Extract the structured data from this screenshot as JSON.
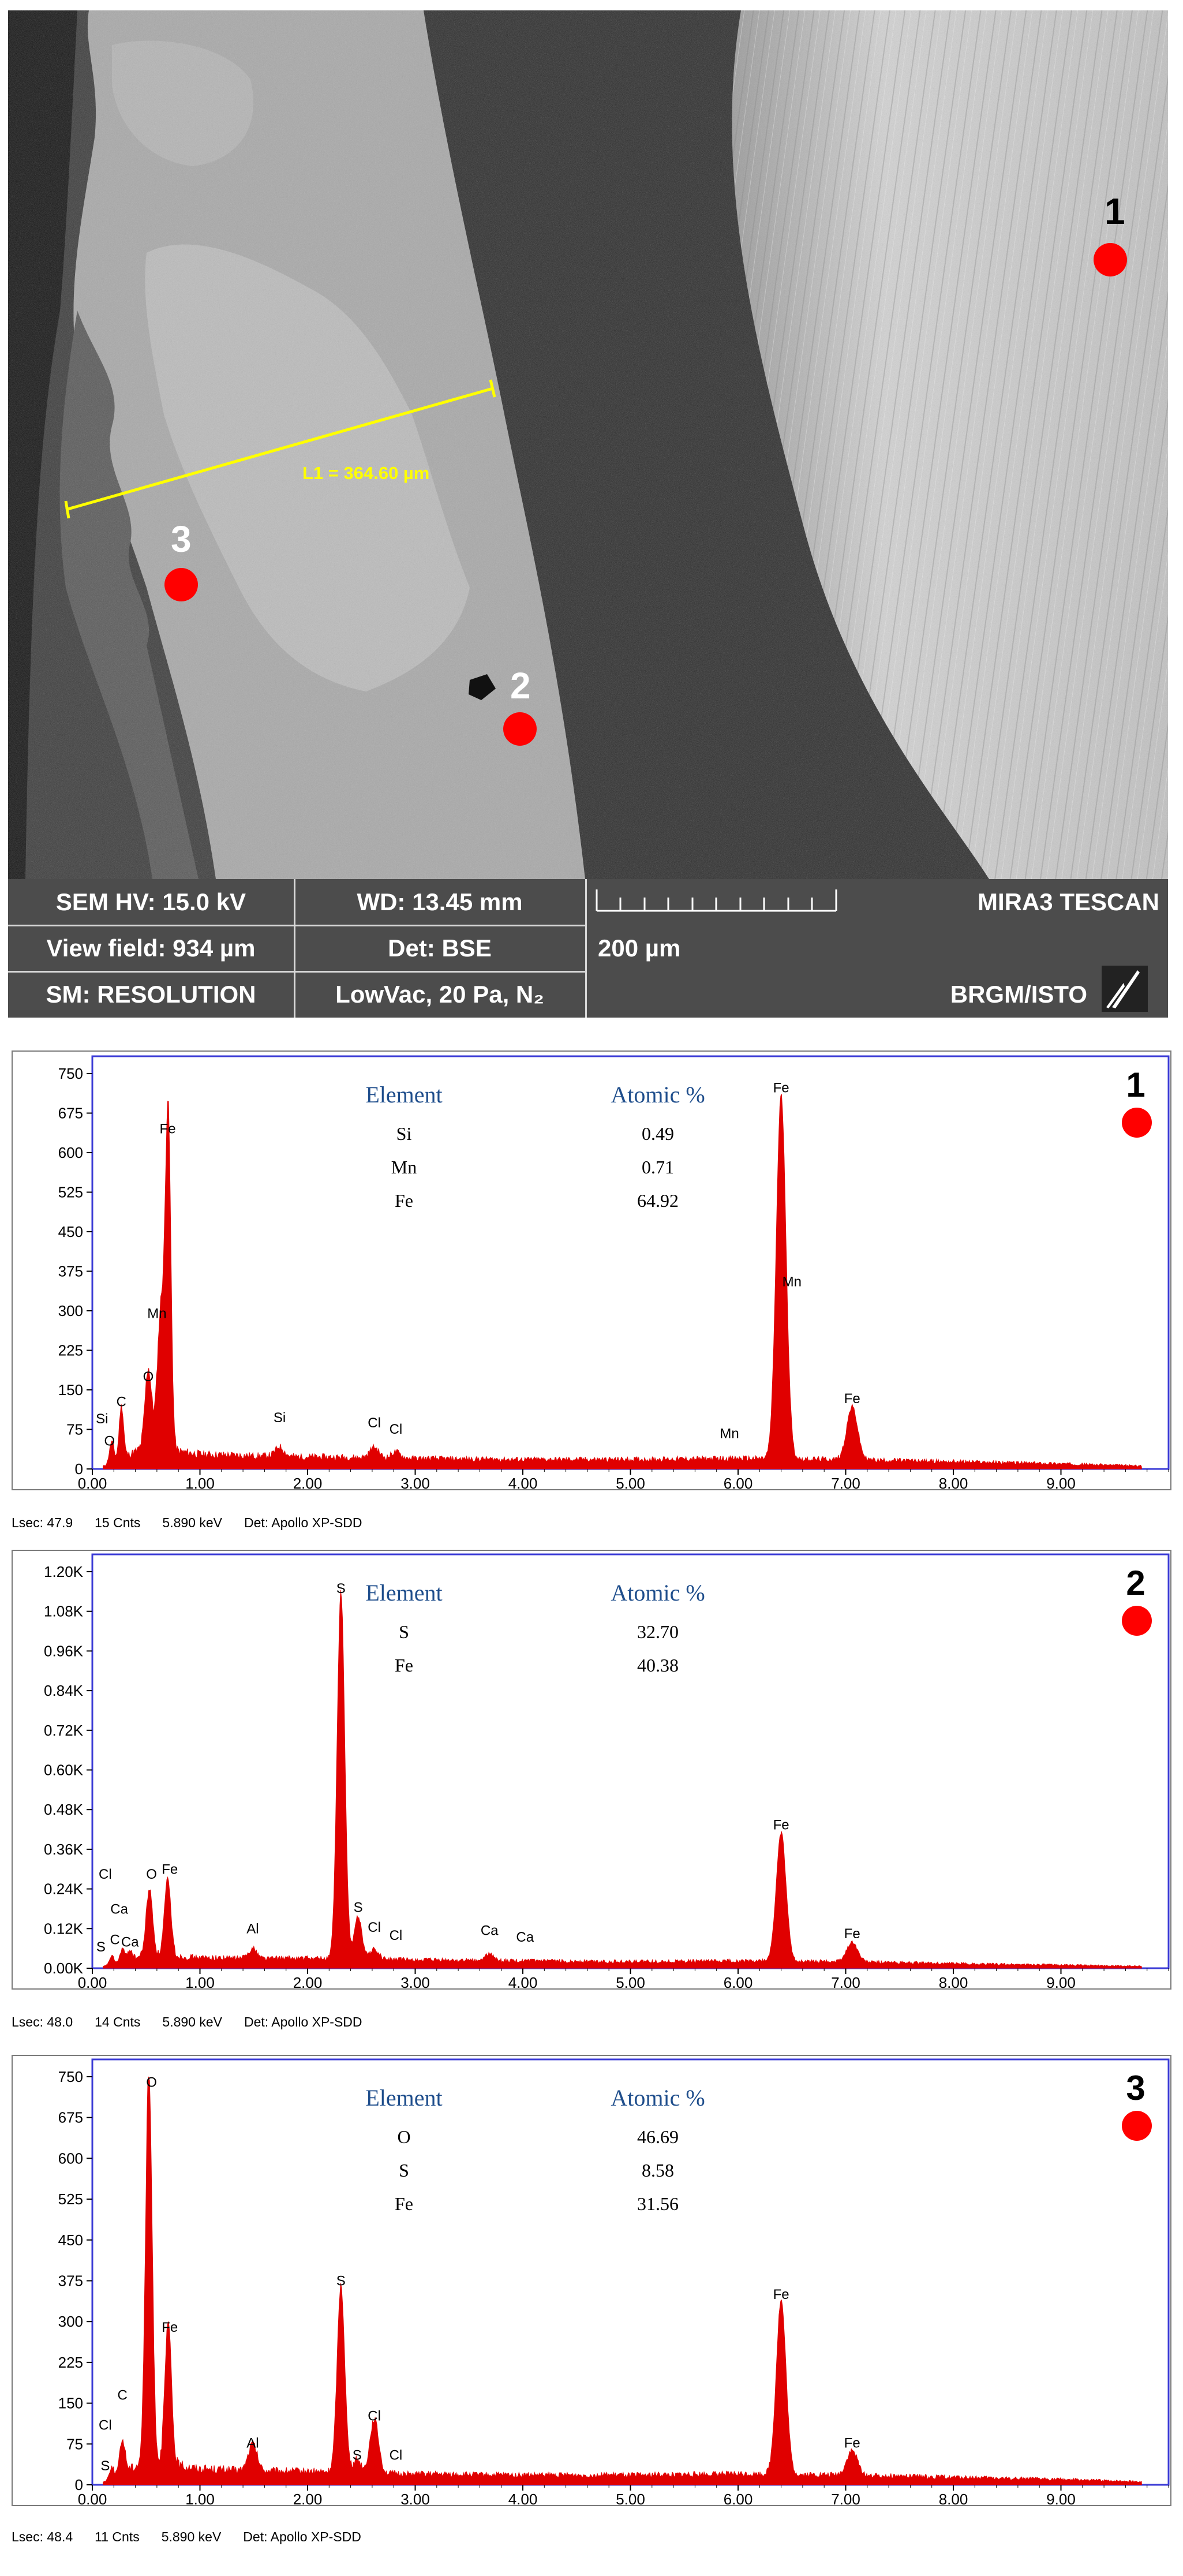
{
  "sem": {
    "footer": {
      "hv": "SEM HV: 15.0 kV",
      "wd": "WD: 13.45 mm",
      "brand": "MIRA3 TESCAN",
      "view_field": "View field: 934 µm",
      "det": "Det: BSE",
      "scale_label": "200 µm",
      "mode": "SM: RESOLUTION",
      "vac": "LowVac, 20 Pa, N₂",
      "lab": "BRGM/ISTO"
    },
    "measure_label": "L1 = 364.60 µm",
    "points": [
      "1",
      "2",
      "3"
    ],
    "marker_color": "#ff0000",
    "measure_color": "#ffff00"
  },
  "chart_data": [
    {
      "type": "area",
      "point_label": "1",
      "ylim": [
        0,
        750
      ],
      "yticks": [
        "750",
        "675",
        "600",
        "525",
        "450",
        "375",
        "300",
        "225",
        "150",
        "75",
        "0"
      ],
      "xlim": [
        0,
        10
      ],
      "xticks": [
        "0.00",
        "1.00",
        "2.00",
        "3.00",
        "4.00",
        "5.00",
        "6.00",
        "7.00",
        "8.00",
        "9.00"
      ],
      "table": {
        "header": [
          "Element",
          "Atomic %"
        ],
        "rows": [
          [
            "Si",
            "0.49"
          ],
          [
            "Mn",
            "0.71"
          ],
          [
            "Fe",
            "64.92"
          ]
        ]
      },
      "status": [
        "Lsec: 47.9",
        "15 Cnts",
        "5.890 keV",
        "Det: Apollo XP-SDD"
      ],
      "baseline": [
        [
          0.1,
          5
        ],
        [
          0.5,
          42
        ],
        [
          1.0,
          28
        ],
        [
          1.5,
          25
        ],
        [
          2.0,
          23
        ],
        [
          2.5,
          22
        ],
        [
          3.0,
          20
        ],
        [
          4.0,
          18
        ],
        [
          5.0,
          18
        ],
        [
          6.0,
          20
        ],
        [
          7.0,
          18
        ],
        [
          8.0,
          14
        ],
        [
          9.0,
          10
        ],
        [
          9.7,
          6
        ]
      ],
      "peaks": [
        {
          "x": 0.18,
          "y": 40,
          "w": 0.02
        },
        {
          "x": 0.27,
          "y": 100,
          "w": 0.02
        },
        {
          "x": 0.52,
          "y": 150,
          "w": 0.03
        },
        {
          "x": 0.64,
          "y": 270,
          "w": 0.035
        },
        {
          "x": 0.705,
          "y": 615,
          "w": 0.025
        },
        {
          "x": 1.74,
          "y": 18,
          "w": 0.04
        },
        {
          "x": 2.62,
          "y": 20,
          "w": 0.04
        },
        {
          "x": 2.82,
          "y": 12,
          "w": 0.04
        },
        {
          "x": 6.4,
          "y": 690,
          "w": 0.045
        },
        {
          "x": 7.06,
          "y": 100,
          "w": 0.05
        }
      ],
      "labels": [
        {
          "t": "Si",
          "x": 0.09,
          "y": 80
        },
        {
          "t": "C",
          "x": 0.27,
          "y": 112
        },
        {
          "t": "O",
          "x": 0.16,
          "y": 38
        },
        {
          "t": "O",
          "x": 0.52,
          "y": 160
        },
        {
          "t": "Mn",
          "x": 0.6,
          "y": 280
        },
        {
          "t": "Fe",
          "x": 0.7,
          "y": 630
        },
        {
          "t": "Si",
          "x": 1.74,
          "y": 82
        },
        {
          "t": "Cl",
          "x": 2.62,
          "y": 72
        },
        {
          "t": "Cl",
          "x": 2.82,
          "y": 60
        },
        {
          "t": "Mn",
          "x": 5.92,
          "y": 52
        },
        {
          "t": "Fe",
          "x": 6.4,
          "y": 708
        },
        {
          "t": "Mn",
          "x": 6.5,
          "y": 340
        },
        {
          "t": "Fe",
          "x": 7.06,
          "y": 118
        }
      ]
    },
    {
      "type": "area",
      "point_label": "2",
      "ylim": [
        0,
        1200
      ],
      "yticks": [
        "1.20K",
        "1.08K",
        "0.96K",
        "0.84K",
        "0.72K",
        "0.60K",
        "0.48K",
        "0.36K",
        "0.24K",
        "0.12K",
        "0.00K"
      ],
      "xlim": [
        0,
        10
      ],
      "xticks": [
        "0.00",
        "1.00",
        "2.00",
        "3.00",
        "4.00",
        "5.00",
        "6.00",
        "7.00",
        "8.00",
        "9.00"
      ],
      "table": {
        "header": [
          "Element",
          "Atomic %"
        ],
        "rows": [
          [
            "S",
            "32.70"
          ],
          [
            "Fe",
            "40.38"
          ]
        ]
      },
      "status": [
        "Lsec: 48.0",
        "14 Cnts",
        "5.890 keV",
        "Det: Apollo XP-SDD"
      ],
      "baseline": [
        [
          0.1,
          5
        ],
        [
          0.5,
          40
        ],
        [
          1.0,
          32
        ],
        [
          1.5,
          30
        ],
        [
          2.0,
          30
        ],
        [
          2.5,
          28
        ],
        [
          3.0,
          25
        ],
        [
          4.0,
          22
        ],
        [
          5.0,
          20
        ],
        [
          6.0,
          22
        ],
        [
          7.0,
          20
        ],
        [
          8.0,
          14
        ],
        [
          9.0,
          10
        ],
        [
          9.7,
          6
        ]
      ],
      "peaks": [
        {
          "x": 0.18,
          "y": 25,
          "w": 0.02
        },
        {
          "x": 0.28,
          "y": 40,
          "w": 0.02
        },
        {
          "x": 0.35,
          "y": 30,
          "w": 0.02
        },
        {
          "x": 0.53,
          "y": 200,
          "w": 0.03
        },
        {
          "x": 0.7,
          "y": 230,
          "w": 0.03
        },
        {
          "x": 1.49,
          "y": 30,
          "w": 0.04
        },
        {
          "x": 2.31,
          "y": 1110,
          "w": 0.035
        },
        {
          "x": 2.47,
          "y": 130,
          "w": 0.035
        },
        {
          "x": 2.62,
          "y": 30,
          "w": 0.04
        },
        {
          "x": 3.69,
          "y": 20,
          "w": 0.04
        },
        {
          "x": 6.4,
          "y": 390,
          "w": 0.045
        },
        {
          "x": 7.06,
          "y": 60,
          "w": 0.05
        }
      ],
      "labels": [
        {
          "t": "Cl",
          "x": 0.12,
          "y": 260
        },
        {
          "t": "Ca",
          "x": 0.25,
          "y": 155
        },
        {
          "t": "S",
          "x": 0.08,
          "y": 40
        },
        {
          "t": "C",
          "x": 0.21,
          "y": 62
        },
        {
          "t": "Ca",
          "x": 0.35,
          "y": 55
        },
        {
          "t": "O",
          "x": 0.55,
          "y": 260
        },
        {
          "t": "Fe",
          "x": 0.72,
          "y": 275
        },
        {
          "t": "Al",
          "x": 1.49,
          "y": 95
        },
        {
          "t": "S",
          "x": 2.31,
          "y": 1125
        },
        {
          "t": "S",
          "x": 2.47,
          "y": 160
        },
        {
          "t": "Cl",
          "x": 2.62,
          "y": 100
        },
        {
          "t": "Cl",
          "x": 2.82,
          "y": 75
        },
        {
          "t": "Ca",
          "x": 3.69,
          "y": 90
        },
        {
          "t": "Ca",
          "x": 4.02,
          "y": 70
        },
        {
          "t": "Fe",
          "x": 6.4,
          "y": 410
        },
        {
          "t": "Fe",
          "x": 7.06,
          "y": 80
        }
      ]
    },
    {
      "type": "area",
      "point_label": "3",
      "ylim": [
        0,
        750
      ],
      "yticks": [
        "750",
        "675",
        "600",
        "525",
        "450",
        "375",
        "300",
        "225",
        "150",
        "75",
        "0"
      ],
      "xlim": [
        0,
        10
      ],
      "xticks": [
        "0.00",
        "1.00",
        "2.00",
        "3.00",
        "4.00",
        "5.00",
        "6.00",
        "7.00",
        "8.00",
        "9.00"
      ],
      "table": {
        "header": [
          "Element",
          "Atomic %"
        ],
        "rows": [
          [
            "O",
            "46.69"
          ],
          [
            "S",
            "8.58"
          ],
          [
            "Fe",
            "31.56"
          ]
        ]
      },
      "status": [
        "Lsec: 48.4",
        "11 Cnts",
        "5.890 keV",
        "Det: Apollo XP-SDD"
      ],
      "baseline": [
        [
          0.1,
          5
        ],
        [
          0.5,
          45
        ],
        [
          1.0,
          30
        ],
        [
          1.5,
          26
        ],
        [
          2.0,
          25
        ],
        [
          2.5,
          22
        ],
        [
          3.0,
          20
        ],
        [
          4.0,
          18
        ],
        [
          5.0,
          18
        ],
        [
          6.0,
          20
        ],
        [
          7.0,
          18
        ],
        [
          8.0,
          14
        ],
        [
          9.0,
          10
        ],
        [
          9.7,
          6
        ]
      ],
      "peaks": [
        {
          "x": 0.18,
          "y": 20,
          "w": 0.02
        },
        {
          "x": 0.28,
          "y": 60,
          "w": 0.025
        },
        {
          "x": 0.525,
          "y": 720,
          "w": 0.03
        },
        {
          "x": 0.705,
          "y": 260,
          "w": 0.03
        },
        {
          "x": 1.49,
          "y": 50,
          "w": 0.04
        },
        {
          "x": 2.31,
          "y": 345,
          "w": 0.035
        },
        {
          "x": 2.46,
          "y": 25,
          "w": 0.035
        },
        {
          "x": 2.62,
          "y": 100,
          "w": 0.04
        },
        {
          "x": 6.4,
          "y": 320,
          "w": 0.045
        },
        {
          "x": 7.06,
          "y": 45,
          "w": 0.05
        }
      ],
      "labels": [
        {
          "t": "Cl",
          "x": 0.12,
          "y": 95
        },
        {
          "t": "C",
          "x": 0.28,
          "y": 150
        },
        {
          "t": "S",
          "x": 0.12,
          "y": 20
        },
        {
          "t": "O",
          "x": 0.55,
          "y": 725
        },
        {
          "t": "Fe",
          "x": 0.72,
          "y": 275
        },
        {
          "t": "Al",
          "x": 1.49,
          "y": 62
        },
        {
          "t": "S",
          "x": 2.31,
          "y": 360
        },
        {
          "t": "S",
          "x": 2.46,
          "y": 40
        },
        {
          "t": "Cl",
          "x": 2.62,
          "y": 112
        },
        {
          "t": "Cl",
          "x": 2.82,
          "y": 40
        },
        {
          "t": "Fe",
          "x": 6.4,
          "y": 335
        },
        {
          "t": "Fe",
          "x": 7.06,
          "y": 62
        }
      ]
    }
  ]
}
